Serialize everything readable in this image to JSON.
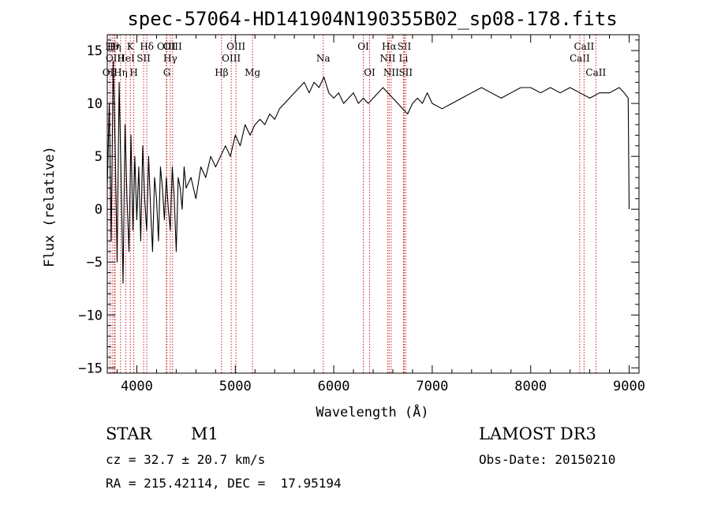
{
  "chart_data": {
    "type": "line",
    "title": "spec-57064-HD141904N190355B02_sp08-178.fits",
    "xlabel": "Wavelength (Å)",
    "ylabel": "Flux (relative)",
    "xlim": [
      3700,
      9100
    ],
    "ylim": [
      -15.5,
      16.5
    ],
    "x_ticks": [
      4000,
      5000,
      6000,
      7000,
      8000,
      9000
    ],
    "y_ticks": [
      -15,
      -10,
      -5,
      0,
      5,
      10,
      15
    ],
    "grid": false,
    "series": [
      {
        "x": [
          3700,
          3720,
          3740,
          3760,
          3780,
          3800,
          3820,
          3840,
          3860,
          3880,
          3900,
          3920,
          3940,
          3960,
          3980,
          4000,
          4020,
          4040,
          4060,
          4080,
          4100,
          4120,
          4140,
          4160,
          4180,
          4200,
          4220,
          4240,
          4260,
          4280,
          4300,
          4320,
          4340,
          4360,
          4380,
          4400,
          4420,
          4440,
          4460,
          4480,
          4500,
          4550,
          4600,
          4650,
          4700,
          4750,
          4800,
          4850,
          4900,
          4950,
          5000,
          5050,
          5100,
          5150,
          5200,
          5250,
          5300,
          5350,
          5400,
          5450,
          5500,
          5550,
          5600,
          5650,
          5700,
          5750,
          5800,
          5850,
          5900,
          5950,
          6000,
          6050,
          6100,
          6150,
          6200,
          6250,
          6300,
          6350,
          6400,
          6450,
          6500,
          6550,
          6600,
          6650,
          6700,
          6750,
          6800,
          6850,
          6900,
          6950,
          7000,
          7100,
          7200,
          7300,
          7400,
          7500,
          7600,
          7700,
          7800,
          7900,
          8000,
          8100,
          8200,
          8300,
          8400,
          8500,
          8600,
          8700,
          8800,
          8900,
          8950,
          8990,
          9000
        ],
        "y": [
          2,
          10,
          -3,
          14,
          6,
          -5,
          12,
          3,
          -7,
          8,
          1,
          -4,
          7,
          -2,
          5,
          -1,
          4,
          -3,
          6,
          1,
          -2,
          5,
          0,
          -4,
          3,
          1,
          -3,
          4,
          2,
          -1,
          3,
          0,
          -2,
          4,
          1,
          -4,
          3,
          2,
          0,
          4,
          2,
          3,
          1,
          4,
          3,
          5,
          4,
          5,
          6,
          5,
          7,
          6,
          8,
          7,
          8,
          8.5,
          8,
          9,
          8.5,
          9.5,
          10,
          10.5,
          11,
          11.5,
          12,
          11,
          12,
          11.5,
          12.5,
          11,
          10.5,
          11,
          10,
          10.5,
          11,
          10,
          10.5,
          10,
          10.5,
          11,
          11.5,
          11,
          10.5,
          10,
          9.5,
          9,
          10,
          10.5,
          10,
          11,
          10,
          9.5,
          10,
          10.5,
          11,
          11.5,
          11,
          10.5,
          11,
          11.5,
          11.5,
          11,
          11.5,
          11,
          11.5,
          11,
          10.5,
          11,
          11,
          11.5,
          11,
          10.5,
          0
        ]
      }
    ],
    "line_markers": [
      {
        "name": "OII",
        "x": 3727,
        "row": 2
      },
      {
        "name": "Hθ",
        "x": 3750,
        "row": 0
      },
      {
        "name": "Hη",
        "x": 3770,
        "row": 0
      },
      {
        "name": "OIII",
        "x": 3780,
        "row": 1
      },
      {
        "name": "Hη",
        "x": 3835,
        "row": 2
      },
      {
        "name": "HeI",
        "x": 3889,
        "row": 1
      },
      {
        "name": "K",
        "x": 3934,
        "row": 0
      },
      {
        "name": "H",
        "x": 3969,
        "row": 2
      },
      {
        "name": "SII",
        "x": 4069,
        "row": 1
      },
      {
        "name": "Hδ",
        "x": 4102,
        "row": 0
      },
      {
        "name": "OIII",
        "x": 4300,
        "row": 0
      },
      {
        "name": "G",
        "x": 4305,
        "row": 2
      },
      {
        "name": "Hγ",
        "x": 4340,
        "row": 1
      },
      {
        "name": "OIII",
        "x": 4363,
        "row": 0
      },
      {
        "name": "Hβ",
        "x": 4861,
        "row": 2
      },
      {
        "name": "OIII",
        "x": 4959,
        "row": 1
      },
      {
        "name": "OIII",
        "x": 5007,
        "row": 0
      },
      {
        "name": "Mg",
        "x": 5175,
        "row": 2
      },
      {
        "name": "Na",
        "x": 5893,
        "row": 1
      },
      {
        "name": "OI",
        "x": 6300,
        "row": 0
      },
      {
        "name": "OI",
        "x": 6364,
        "row": 2
      },
      {
        "name": "NII",
        "x": 6548,
        "row": 1
      },
      {
        "name": "Hα",
        "x": 6563,
        "row": 0
      },
      {
        "name": "NII",
        "x": 6583,
        "row": 2
      },
      {
        "name": "Li",
        "x": 6708,
        "row": 1
      },
      {
        "name": "SII",
        "x": 6716,
        "row": 0
      },
      {
        "name": "SII",
        "x": 6731,
        "row": 2
      },
      {
        "name": "CaII",
        "x": 8498,
        "row": 1
      },
      {
        "name": "CaII",
        "x": 8542,
        "row": 0
      },
      {
        "name": "CaII",
        "x": 8662,
        "row": 2
      }
    ]
  },
  "info": {
    "object_type": "STAR",
    "subclass": "M1",
    "survey": "LAMOST DR3",
    "cz": "cz = 32.7 ± 20.7 km/s",
    "obs_date": "Obs-Date: 20150210",
    "coords": "RA = 215.42114, DEC =  17.95194"
  }
}
